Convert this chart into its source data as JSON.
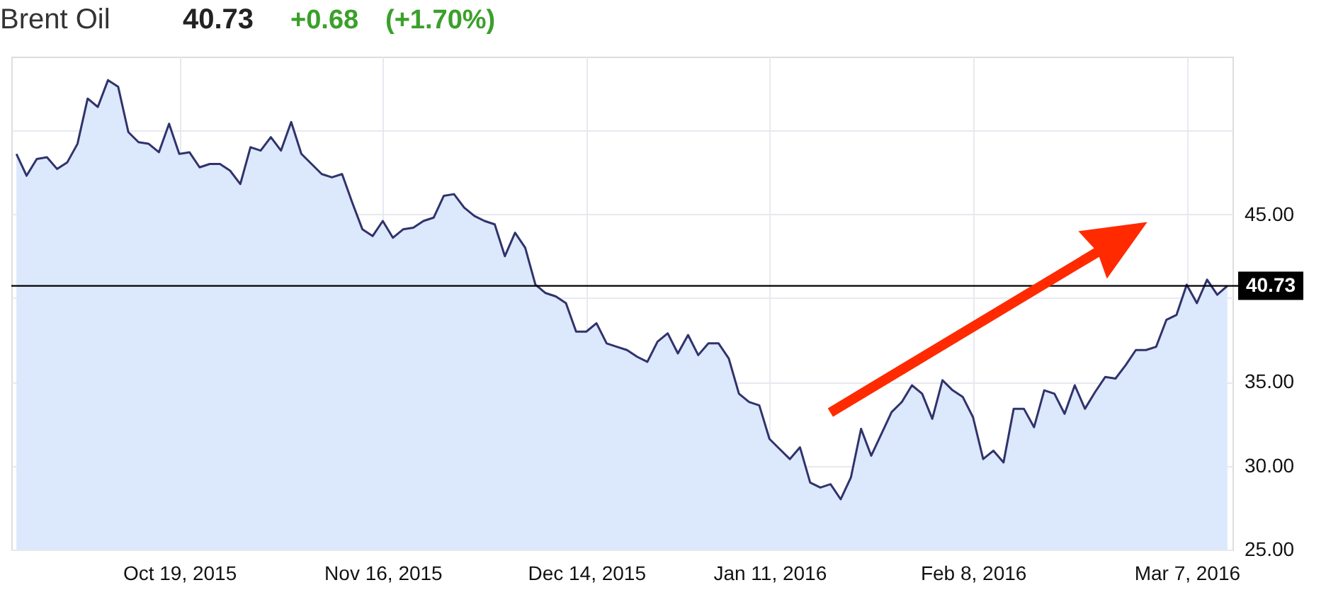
{
  "chart_data": {
    "type": "area",
    "title": "Brent Oil",
    "annotations": [
      "40.73",
      "+0.68",
      "(+1.70%)"
    ],
    "categories": [
      null,
      null,
      null,
      null,
      null,
      null,
      null,
      null,
      null,
      null,
      null,
      null,
      null,
      null,
      null,
      null,
      "Oct 19, 2015",
      null,
      null,
      null,
      null,
      null,
      null,
      null,
      null,
      null,
      null,
      null,
      null,
      null,
      null,
      null,
      null,
      null,
      null,
      null,
      "Nov 16, 2015",
      null,
      null,
      null,
      null,
      null,
      null,
      null,
      null,
      null,
      null,
      null,
      null,
      null,
      null,
      null,
      null,
      null,
      null,
      null,
      "Dec 14, 2015",
      null,
      null,
      null,
      null,
      null,
      null,
      null,
      null,
      null,
      null,
      null,
      null,
      null,
      null,
      null,
      null,
      null,
      "Jan 11, 2016",
      null,
      null,
      null,
      null,
      null,
      null,
      null,
      null,
      null,
      null,
      null,
      null,
      null,
      null,
      null,
      null,
      null,
      null,
      null,
      "Feb 8, 2016",
      null,
      null,
      null,
      null,
      null,
      null,
      null,
      null,
      null,
      null,
      null,
      null,
      null,
      null,
      null,
      null,
      null,
      null,
      null,
      null,
      "Mar 7, 2016",
      null,
      null,
      null,
      null
    ],
    "series": [
      {
        "color": "#30336b",
        "values": [
          48.6,
          47.3,
          48.3,
          48.4,
          47.7,
          48.1,
          49.2,
          51.9,
          51.4,
          53.0,
          52.6,
          49.9,
          49.3,
          49.2,
          48.7,
          50.4,
          48.6,
          48.7,
          47.8,
          48.0,
          48.0,
          47.6,
          46.8,
          49.0,
          48.8,
          49.6,
          48.8,
          50.5,
          48.6,
          48.0,
          47.4,
          47.2,
          47.4,
          45.7,
          44.1,
          43.7,
          44.6,
          43.6,
          44.1,
          44.2,
          44.6,
          44.8,
          46.1,
          46.2,
          45.4,
          44.9,
          44.6,
          44.4,
          42.5,
          43.9,
          43.0,
          40.8,
          40.3,
          40.1,
          39.7,
          38.0,
          38.0,
          38.5,
          37.3,
          37.1,
          36.9,
          36.5,
          36.2,
          37.4,
          37.9,
          36.7,
          37.8,
          36.6,
          37.3,
          37.3,
          36.4,
          34.3,
          33.8,
          33.6,
          31.6,
          31.0,
          30.4,
          31.1,
          29.0,
          28.7,
          28.9,
          28.0,
          29.3,
          32.2,
          30.6,
          31.9,
          33.2,
          33.8,
          34.8,
          34.3,
          32.8,
          35.1,
          34.5,
          34.1,
          32.9,
          30.4,
          30.9,
          30.2,
          33.4,
          33.4,
          32.3,
          34.5,
          34.3,
          33.1,
          34.8,
          33.4,
          34.4,
          35.3,
          35.2,
          36.0,
          36.9,
          36.9,
          37.1,
          38.7,
          39.0,
          40.8,
          39.7,
          41.1,
          40.2,
          40.73
        ]
      }
    ],
    "ylim": [
      25,
      54.4
    ],
    "yticks": [
      {
        "value": 25,
        "label": "25.00"
      },
      {
        "value": 30,
        "label": "30.00"
      },
      {
        "value": 35,
        "label": "35.00"
      },
      {
        "value": 40,
        "label": null
      },
      {
        "value": 45,
        "label": "45.00"
      },
      {
        "value": 50,
        "label": null
      }
    ],
    "ref_lines": [
      {
        "axis": "y",
        "value": 40.73,
        "label": "40.73",
        "color": "#000000"
      }
    ],
    "grid": true
  }
}
